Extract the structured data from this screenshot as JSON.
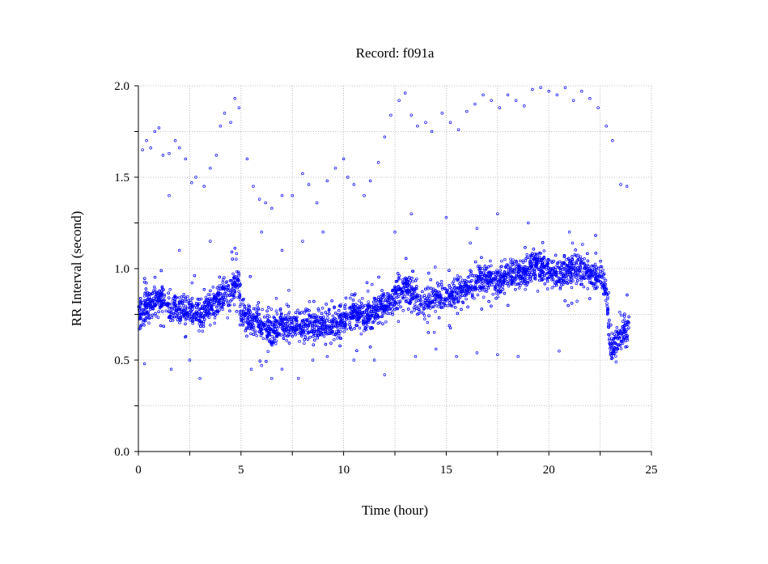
{
  "chart_data": {
    "type": "scatter",
    "title": "Record:  f091a",
    "xlabel": "Time (hour)",
    "ylabel": "RR Interval (second)",
    "xlim": [
      0,
      25
    ],
    "ylim": [
      0,
      2
    ],
    "xticks": [
      0,
      5,
      10,
      15,
      20,
      25
    ],
    "xtick_labels": [
      "0",
      "5",
      "10",
      "15",
      "20",
      "25"
    ],
    "yticks": [
      0,
      0.5,
      1.0,
      1.5,
      2.0
    ],
    "ytick_labels": [
      "0.0",
      "0.5",
      "1.0",
      "1.5",
      "2.0"
    ],
    "grid": true,
    "marker_color": "#0000ff",
    "trend": [
      [
        0.0,
        0.75
      ],
      [
        0.5,
        0.8
      ],
      [
        1.0,
        0.84
      ],
      [
        1.5,
        0.8
      ],
      [
        2.0,
        0.78
      ],
      [
        2.5,
        0.78
      ],
      [
        3.0,
        0.74
      ],
      [
        3.5,
        0.8
      ],
      [
        4.0,
        0.85
      ],
      [
        4.5,
        0.88
      ],
      [
        4.9,
        0.92
      ],
      [
        5.0,
        0.75
      ],
      [
        5.5,
        0.72
      ],
      [
        6.0,
        0.7
      ],
      [
        6.5,
        0.66
      ],
      [
        7.0,
        0.7
      ],
      [
        7.5,
        0.69
      ],
      [
        8.0,
        0.67
      ],
      [
        8.5,
        0.7
      ],
      [
        9.0,
        0.7
      ],
      [
        9.5,
        0.68
      ],
      [
        10.0,
        0.72
      ],
      [
        10.5,
        0.76
      ],
      [
        11.0,
        0.74
      ],
      [
        11.5,
        0.76
      ],
      [
        12.0,
        0.8
      ],
      [
        12.5,
        0.85
      ],
      [
        13.0,
        0.9
      ],
      [
        13.5,
        0.84
      ],
      [
        14.0,
        0.8
      ],
      [
        14.5,
        0.86
      ],
      [
        15.0,
        0.84
      ],
      [
        15.5,
        0.88
      ],
      [
        16.0,
        0.9
      ],
      [
        16.5,
        0.93
      ],
      [
        17.0,
        0.95
      ],
      [
        17.5,
        0.94
      ],
      [
        18.0,
        0.96
      ],
      [
        18.5,
        0.97
      ],
      [
        19.0,
        1.0
      ],
      [
        19.5,
        1.02
      ],
      [
        20.0,
        0.98
      ],
      [
        20.5,
        0.97
      ],
      [
        21.0,
        1.0
      ],
      [
        21.5,
        0.98
      ],
      [
        22.0,
        0.97
      ],
      [
        22.5,
        0.96
      ],
      [
        22.8,
        0.88
      ],
      [
        23.0,
        0.55
      ],
      [
        23.3,
        0.6
      ],
      [
        23.6,
        0.65
      ],
      [
        23.9,
        0.68
      ]
    ],
    "outliers": [
      [
        0.2,
        1.65
      ],
      [
        0.4,
        1.7
      ],
      [
        0.6,
        1.66
      ],
      [
        0.8,
        1.75
      ],
      [
        1.0,
        1.77
      ],
      [
        1.2,
        1.62
      ],
      [
        1.5,
        1.63
      ],
      [
        1.8,
        1.7
      ],
      [
        2.0,
        1.66
      ],
      [
        2.3,
        1.6
      ],
      [
        2.6,
        1.47
      ],
      [
        2.8,
        1.5
      ],
      [
        1.5,
        1.4
      ],
      [
        3.2,
        1.45
      ],
      [
        3.5,
        1.55
      ],
      [
        3.8,
        1.62
      ],
      [
        4.0,
        1.78
      ],
      [
        4.2,
        1.85
      ],
      [
        4.5,
        1.8
      ],
      [
        4.7,
        1.93
      ],
      [
        4.9,
        1.88
      ],
      [
        5.3,
        1.6
      ],
      [
        5.6,
        1.45
      ],
      [
        5.9,
        1.38
      ],
      [
        6.2,
        1.36
      ],
      [
        6.5,
        1.33
      ],
      [
        7.0,
        1.4
      ],
      [
        7.5,
        1.4
      ],
      [
        8.0,
        1.52
      ],
      [
        8.3,
        1.46
      ],
      [
        8.7,
        1.36
      ],
      [
        9.2,
        1.48
      ],
      [
        9.6,
        1.55
      ],
      [
        10.0,
        1.6
      ],
      [
        10.2,
        1.5
      ],
      [
        10.5,
        1.46
      ],
      [
        11.0,
        1.4
      ],
      [
        11.3,
        1.48
      ],
      [
        11.7,
        1.58
      ],
      [
        12.0,
        1.72
      ],
      [
        12.3,
        1.84
      ],
      [
        12.7,
        1.92
      ],
      [
        13.0,
        1.96
      ],
      [
        13.3,
        1.84
      ],
      [
        13.6,
        1.78
      ],
      [
        14.0,
        1.8
      ],
      [
        14.3,
        1.75
      ],
      [
        14.8,
        1.85
      ],
      [
        15.2,
        1.8
      ],
      [
        15.6,
        1.76
      ],
      [
        16.0,
        1.86
      ],
      [
        16.4,
        1.9
      ],
      [
        16.8,
        1.95
      ],
      [
        17.2,
        1.92
      ],
      [
        17.6,
        1.88
      ],
      [
        18.0,
        1.95
      ],
      [
        18.4,
        1.92
      ],
      [
        18.8,
        1.89
      ],
      [
        19.2,
        1.98
      ],
      [
        19.6,
        1.99
      ],
      [
        20.0,
        1.97
      ],
      [
        20.4,
        1.95
      ],
      [
        20.8,
        1.99
      ],
      [
        21.2,
        1.92
      ],
      [
        21.6,
        1.97
      ],
      [
        22.0,
        1.93
      ],
      [
        22.4,
        1.88
      ],
      [
        22.8,
        1.78
      ],
      [
        23.1,
        1.7
      ],
      [
        23.5,
        1.46
      ],
      [
        23.8,
        1.45
      ],
      [
        0.3,
        0.48
      ],
      [
        1.6,
        0.45
      ],
      [
        2.5,
        0.5
      ],
      [
        3.0,
        0.4
      ],
      [
        5.5,
        0.45
      ],
      [
        6.0,
        0.47
      ],
      [
        6.5,
        0.4
      ],
      [
        7.0,
        0.45
      ],
      [
        7.8,
        0.4
      ],
      [
        8.5,
        0.5
      ],
      [
        9.2,
        0.52
      ],
      [
        10.5,
        0.5
      ],
      [
        11.5,
        0.5
      ],
      [
        12.0,
        0.42
      ],
      [
        13.5,
        0.52
      ],
      [
        14.5,
        0.56
      ],
      [
        15.5,
        0.52
      ],
      [
        16.5,
        0.54
      ],
      [
        17.5,
        0.53
      ],
      [
        18.5,
        0.52
      ],
      [
        20.5,
        0.55
      ],
      [
        6.0,
        1.2
      ],
      [
        7.0,
        1.1
      ],
      [
        8.0,
        1.15
      ],
      [
        9.0,
        1.2
      ],
      [
        12.5,
        1.2
      ],
      [
        13.3,
        1.3
      ],
      [
        15.0,
        1.28
      ],
      [
        16.5,
        1.22
      ],
      [
        17.5,
        1.3
      ],
      [
        19.0,
        1.25
      ],
      [
        21.0,
        1.2
      ],
      [
        3.5,
        1.15
      ],
      [
        2.0,
        1.1
      ]
    ]
  }
}
